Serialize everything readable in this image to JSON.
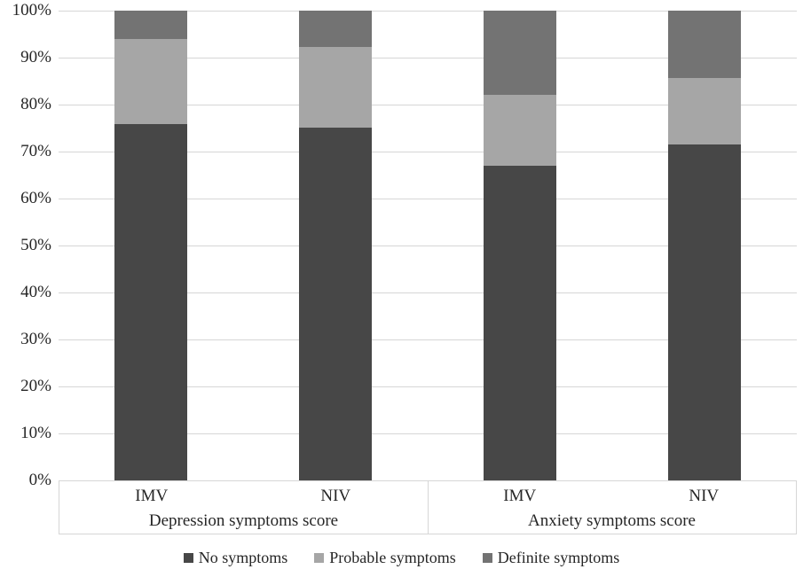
{
  "chart_data": {
    "type": "bar",
    "stacked": true,
    "percent_stacked": true,
    "title": "",
    "xlabel": "",
    "ylabel": "",
    "grid": true,
    "groups": [
      {
        "label": "Depression symptoms score",
        "categories": [
          "IMV",
          "NIV"
        ]
      },
      {
        "label": "Anxiety symptoms score",
        "categories": [
          "IMV",
          "NIV"
        ]
      }
    ],
    "categories": [
      "IMV",
      "NIV",
      "IMV",
      "NIV"
    ],
    "series": [
      {
        "name": "No symptoms",
        "color": "#474747",
        "values": [
          75.8,
          75.1,
          66.9,
          71.5
        ]
      },
      {
        "name": "Probable symptoms",
        "color": "#a6a6a6",
        "values": [
          18.2,
          17.2,
          15.1,
          14.2
        ]
      },
      {
        "name": "Definite symptoms",
        "color": "#737373",
        "values": [
          6.0,
          7.7,
          18.0,
          14.3
        ]
      }
    ],
    "y_axis": {
      "min": 0,
      "max": 100,
      "step": 10,
      "tick_labels": [
        "0%",
        "10%",
        "20%",
        "30%",
        "40%",
        "50%",
        "60%",
        "70%",
        "80%",
        "90%",
        "100%"
      ]
    },
    "legend": {
      "position": "bottom",
      "labels": [
        "No symptoms",
        "Probable symptoms",
        "Definite symptoms"
      ]
    }
  },
  "colors": {
    "background": "#ffffff",
    "gridline": "#d6d6d6",
    "axis_border": "#d6d6d6",
    "text": "#262626"
  }
}
